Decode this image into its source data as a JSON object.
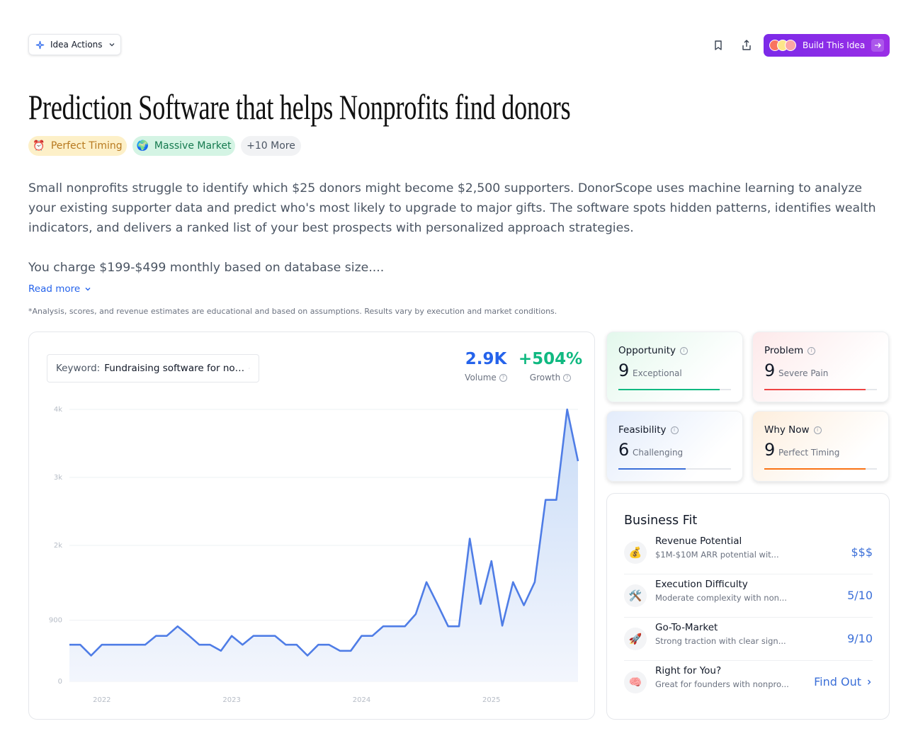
{
  "toolbar": {
    "idea_actions": "Idea Actions",
    "build": "Build This Idea"
  },
  "title": "Prediction Software that helps Nonprofits find donors",
  "tags": [
    {
      "icon": "⏰",
      "label": "Perfect Timing"
    },
    {
      "icon": "🌍",
      "label": "Massive Market"
    }
  ],
  "more_tags": "+10 More",
  "description": [
    "Small nonprofits struggle to identify which $25 donors might become $2,500 supporters. DonorScope uses machine learning to analyze your existing supporter data and predict who's most likely to upgrade to major gifts. The software spots hidden patterns, identifies wealth indicators, and delivers a ranked list of your best prospects with personalized approach strategies.",
    "You charge $199-$499 monthly based on database size...."
  ],
  "read_more": "Read more",
  "disclaimer": "*Analysis, scores, and revenue estimates are educational and based on assumptions. Results vary by execution and market conditions.",
  "keyword": {
    "label": "Keyword:",
    "value": "Fundraising software for no…"
  },
  "stats": [
    {
      "value": "2.9K",
      "label": "Volume"
    },
    {
      "value": "+504%",
      "label": "Growth"
    }
  ],
  "chart_data": {
    "type": "area",
    "categories": [
      null,
      null,
      null,
      "2022",
      null,
      null,
      null,
      null,
      null,
      null,
      null,
      null,
      null,
      null,
      null,
      "2023",
      null,
      null,
      null,
      null,
      null,
      null,
      null,
      null,
      null,
      null,
      null,
      "2024",
      null,
      null,
      null,
      null,
      null,
      null,
      null,
      null,
      null,
      null,
      null,
      "2025",
      null,
      null,
      null,
      null,
      null,
      null,
      null,
      null
    ],
    "values": [
      540,
      540,
      380,
      540,
      540,
      540,
      540,
      540,
      670,
      670,
      810,
      680,
      540,
      540,
      450,
      670,
      540,
      670,
      670,
      670,
      540,
      540,
      380,
      540,
      540,
      450,
      450,
      670,
      670,
      810,
      810,
      810,
      990,
      1460,
      1140,
      810,
      810,
      2100,
      1140,
      1770,
      820,
      1460,
      1120,
      1460,
      2670,
      2670,
      4000,
      3240
    ],
    "color": "#4f7de6",
    "ylim": [
      0,
      4000
    ],
    "yticks": [
      0,
      900,
      {
        "value": 2000,
        "label": "2k"
      },
      {
        "value": 3000,
        "label": "3k"
      },
      {
        "value": 4000,
        "label": "4k"
      }
    ],
    "grid": true
  },
  "scores": [
    {
      "label": "Opportunity",
      "score": 9,
      "rating": "Exceptional"
    },
    {
      "label": "Problem",
      "score": 9,
      "rating": "Severe Pain"
    },
    {
      "label": "Feasibility",
      "score": 6,
      "rating": "Challenging"
    },
    {
      "label": "Why Now",
      "score": 9,
      "rating": "Perfect Timing"
    }
  ],
  "business_fit": {
    "title": "Business Fit",
    "items": [
      {
        "icon": "💰",
        "title": "Revenue Potential",
        "subtitle": "$1M-$10M ARR potential wit...",
        "value": "$$$"
      },
      {
        "icon": "🛠️",
        "title": "Execution Difficulty",
        "subtitle": "Moderate complexity with non...",
        "value": "5/10"
      },
      {
        "icon": "🚀",
        "title": "Go-To-Market",
        "subtitle": "Strong traction with clear sign...",
        "value": "9/10"
      },
      {
        "icon": "🧠",
        "title": "Right for You?",
        "subtitle": "Great for founders with nonpro...",
        "value": "Find Out"
      }
    ]
  }
}
